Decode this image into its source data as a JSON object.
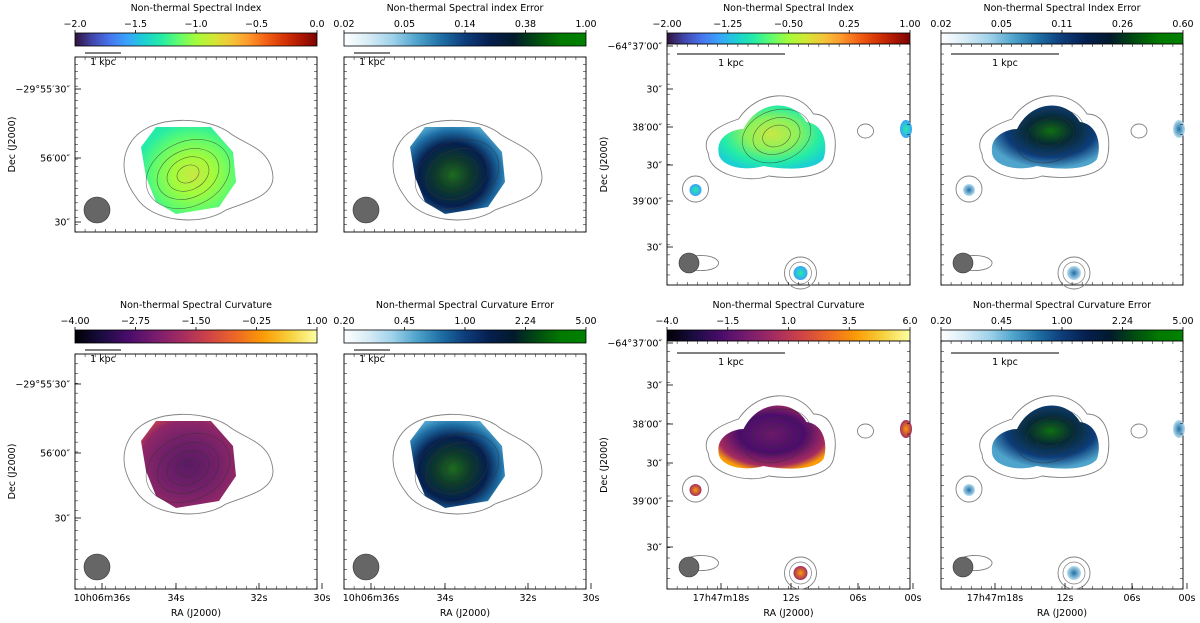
{
  "chart_data": {
    "type": "heatmap",
    "panels": [
      {
        "id": "p1",
        "group": "A",
        "row": "top",
        "title": "Non-thermal Spectral Index",
        "colormap": "turbo",
        "ticks": [
          "−2.0",
          "−1.5",
          "−1.0",
          "−0.5",
          "0.0"
        ],
        "scale_bar": "1 kpc",
        "ylabel": "Dec (J2000)",
        "yticks": [
          "−29°55′30″",
          "56′00″",
          "30″"
        ],
        "xticks": [],
        "xlabel": ""
      },
      {
        "id": "p2",
        "group": "A",
        "row": "top",
        "title": "Non-thermal Spectral index Error",
        "colormap": "ocean_r",
        "ticks": [
          "0.02",
          "0.05",
          "0.14",
          "0.38",
          "1.00"
        ],
        "scale_bar": "1 kpc",
        "ylabel": "",
        "yticks": [],
        "xticks": [],
        "xlabel": ""
      },
      {
        "id": "p3",
        "group": "B",
        "row": "top",
        "title": "Non-thermal Spectral Index",
        "colormap": "turbo",
        "ticks": [
          "−2.00",
          "−1.25",
          "−0.50",
          "0.25",
          "1.00"
        ],
        "scale_bar": "1 kpc",
        "ylabel": "Dec (J2000)",
        "yticks": [
          "−64°37′00″",
          "30″",
          "38′00″",
          "30″",
          "39′00″",
          "30″"
        ],
        "xticks": [],
        "xlabel": ""
      },
      {
        "id": "p4",
        "group": "B",
        "row": "top",
        "title": "Non-thermal Spectral Index Error",
        "colormap": "ocean_r",
        "ticks": [
          "0.02",
          "0.05",
          "0.11",
          "0.26",
          "0.60"
        ],
        "scale_bar": "1 kpc",
        "ylabel": "",
        "yticks": [],
        "xticks": [],
        "xlabel": ""
      },
      {
        "id": "p5",
        "group": "A",
        "row": "bottom",
        "title": "Non-thermal Spectral Curvature",
        "colormap": "inferno",
        "ticks": [
          "−4.00",
          "−2.75",
          "−1.50",
          "−0.25",
          "1.00"
        ],
        "scale_bar": "1 kpc",
        "ylabel": "Dec (J2000)",
        "yticks": [
          "−29°55′30″",
          "56′00″",
          "30″"
        ],
        "xticks": [
          "10h06m36s",
          "34s",
          "32s",
          "30s"
        ],
        "xlabel": "RA (J2000)"
      },
      {
        "id": "p6",
        "group": "A",
        "row": "bottom",
        "title": "Non-thermal Spectral Curvature Error",
        "colormap": "ocean_r",
        "ticks": [
          "0.20",
          "0.45",
          "1.00",
          "2.24",
          "5.00"
        ],
        "scale_bar": "1 kpc",
        "ylabel": "",
        "yticks": [],
        "xticks": [
          "10h06m36s",
          "34s",
          "32s",
          "30s"
        ],
        "xlabel": "RA (J2000)"
      },
      {
        "id": "p7",
        "group": "B",
        "row": "bottom",
        "title": "Non-thermal Spectral Curvature",
        "colormap": "inferno",
        "ticks": [
          "−4.0",
          "−1.5",
          "1.0",
          "3.5",
          "6.0"
        ],
        "scale_bar": "1 kpc",
        "ylabel": "Dec (J2000)",
        "yticks": [
          "−64°37′00″",
          "30″",
          "38′00″",
          "30″",
          "39′00″",
          "30″"
        ],
        "xticks": [
          "17h47m18s",
          "12s",
          "06s",
          "00s"
        ],
        "xlabel": "RA (J2000)"
      },
      {
        "id": "p8",
        "group": "B",
        "row": "bottom",
        "title": "Non-thermal Spectral Curvature Error",
        "colormap": "ocean_r",
        "ticks": [
          "0.20",
          "0.45",
          "1.00",
          "2.24",
          "5.00"
        ],
        "scale_bar": "1 kpc",
        "ylabel": "",
        "yticks": [],
        "xticks": [
          "17h47m18s",
          "12s",
          "06s",
          "00s"
        ],
        "xlabel": "RA (J2000)"
      }
    ]
  },
  "colors": {
    "turbo": [
      "#30123b",
      "#4145ab",
      "#4675ed",
      "#39a2fc",
      "#1bcfd4",
      "#24eca6",
      "#61fc6c",
      "#a4fc3b",
      "#d1e834",
      "#f3c63a",
      "#fe9b2d",
      "#f36315",
      "#d93806",
      "#b11901",
      "#7a0403"
    ],
    "ocean_r": [
      "#ffffff",
      "#d8ecf6",
      "#9fd2ea",
      "#4fa4cc",
      "#1f6fa6",
      "#0d3d7a",
      "#051f4f",
      "#021a2c",
      "#004d10",
      "#007a00",
      "#008000"
    ],
    "inferno": [
      "#000004",
      "#1b0c41",
      "#4a0c6b",
      "#781c6d",
      "#a52c60",
      "#cf4446",
      "#ed6925",
      "#fb9b06",
      "#f7d13d",
      "#fcffa4"
    ],
    "contour": "#808080",
    "beam": "#666666"
  }
}
